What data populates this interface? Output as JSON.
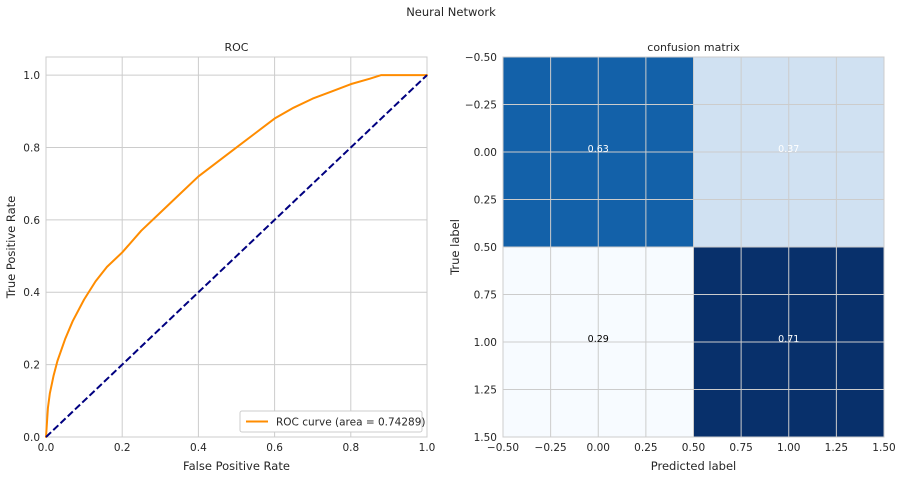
{
  "figure": {
    "suptitle": "Neural Network"
  },
  "chart_data": [
    {
      "type": "line",
      "title": "ROC",
      "xlabel": "False Positive Rate",
      "ylabel": "True Positive Rate",
      "xlim": [
        0.0,
        1.0
      ],
      "ylim": [
        0.0,
        1.05
      ],
      "xticks": [
        0.0,
        0.2,
        0.4,
        0.6,
        0.8,
        1.0
      ],
      "xtick_labels": [
        "0.0",
        "0.2",
        "0.4",
        "0.6",
        "0.8",
        "1.0"
      ],
      "yticks": [
        0.0,
        0.2,
        0.4,
        0.6,
        0.8,
        1.0
      ],
      "ytick_labels": [
        "0.0",
        "0.2",
        "0.4",
        "0.6",
        "0.8",
        "1.0"
      ],
      "grid": true,
      "legend_position": "lower-right",
      "series": [
        {
          "name": "ROC curve (area = 0.74289)",
          "color": "#ff8c00",
          "style": "solid",
          "x": [
            0.0,
            0.005,
            0.01,
            0.02,
            0.03,
            0.05,
            0.07,
            0.1,
            0.13,
            0.16,
            0.2,
            0.25,
            0.3,
            0.35,
            0.4,
            0.45,
            0.5,
            0.55,
            0.6,
            0.65,
            0.7,
            0.75,
            0.8,
            0.85,
            0.88,
            0.9,
            1.0
          ],
          "y": [
            0.0,
            0.08,
            0.12,
            0.17,
            0.21,
            0.27,
            0.32,
            0.38,
            0.43,
            0.47,
            0.51,
            0.57,
            0.62,
            0.67,
            0.72,
            0.76,
            0.8,
            0.84,
            0.88,
            0.91,
            0.935,
            0.955,
            0.975,
            0.99,
            1.0,
            1.0,
            1.0
          ]
        },
        {
          "name": "",
          "color": "#000080",
          "style": "dashed",
          "x": [
            0.0,
            1.0
          ],
          "y": [
            0.0,
            1.0
          ]
        }
      ]
    },
    {
      "type": "heatmap",
      "title": "confusion matrix",
      "xlabel": "Predicted label",
      "ylabel": "True label",
      "xlim": [
        -0.5,
        1.5
      ],
      "ylim": [
        -0.5,
        1.5
      ],
      "y_inverted": true,
      "xticks": [
        -0.5,
        -0.25,
        0.0,
        0.25,
        0.5,
        0.75,
        1.0,
        1.25,
        1.5
      ],
      "xtick_labels": [
        "−0.50",
        "−0.25",
        "0.00",
        "0.25",
        "0.50",
        "0.75",
        "1.00",
        "1.25",
        "1.50"
      ],
      "yticks": [
        -0.5,
        -0.25,
        0.0,
        0.25,
        0.5,
        0.75,
        1.0,
        1.25,
        1.5
      ],
      "ytick_labels": [
        "−0.50",
        "−0.25",
        "0.00",
        "0.25",
        "0.50",
        "0.75",
        "1.00",
        "1.25",
        "1.50"
      ],
      "grid": true,
      "values": [
        [
          0.63,
          0.37
        ],
        [
          0.29,
          0.71
        ]
      ],
      "cell_labels": [
        [
          "0.63",
          "0.37"
        ],
        [
          "0.29",
          "0.71"
        ]
      ],
      "cell_colors": [
        [
          "#1361a9",
          "#d0e1f2"
        ],
        [
          "#f7fbff",
          "#08306b"
        ]
      ],
      "label_colors": [
        [
          "#ffffff",
          "#ffffff"
        ],
        [
          "#000000",
          "#ffffff"
        ]
      ],
      "colormap": "Blues"
    }
  ]
}
